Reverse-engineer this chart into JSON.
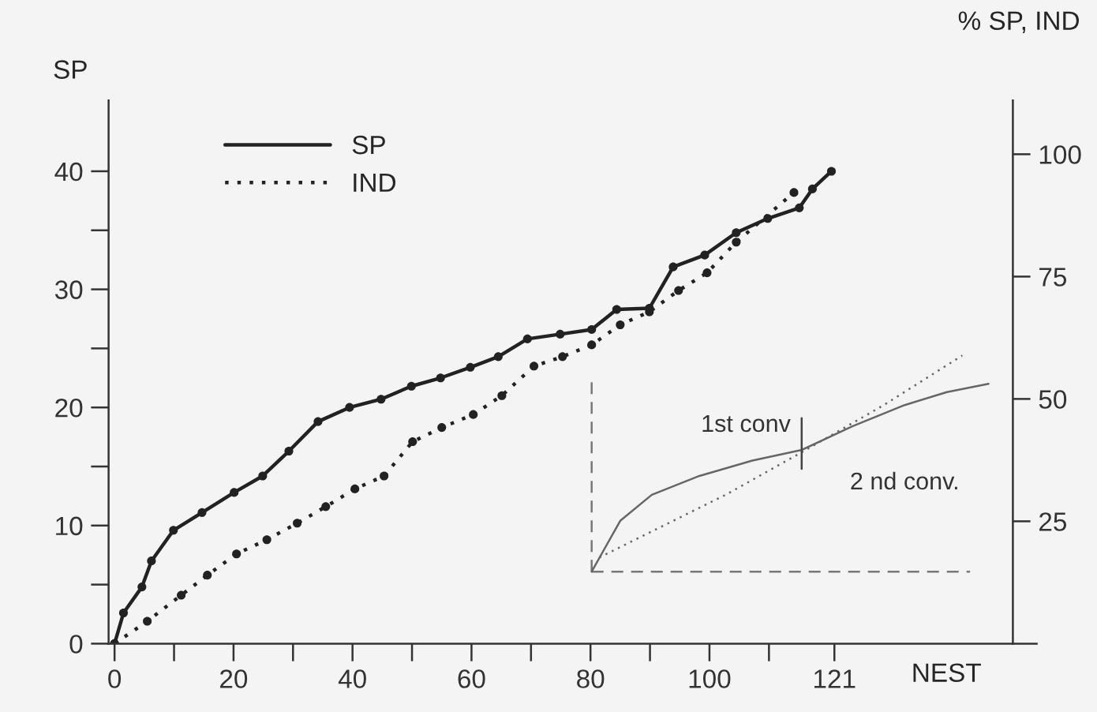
{
  "chart_data": {
    "type": "line",
    "ylabel": "SP",
    "y2label": "% SP, IND",
    "xlabel": "NEST",
    "xlim": [
      -1,
      155
    ],
    "ylim": [
      0,
      46
    ],
    "y2lim": [
      0,
      111
    ],
    "xticks": [
      0,
      {
        "value": 10,
        "label": null
      },
      20,
      {
        "value": 30,
        "label": null
      },
      40,
      {
        "value": 50,
        "label": null
      },
      60,
      {
        "value": 70,
        "label": null
      },
      80,
      {
        "value": 90,
        "label": null
      },
      100,
      {
        "value": 110,
        "label": null
      },
      121
    ],
    "yticks": [
      0,
      {
        "value": 5,
        "label": null
      },
      10,
      {
        "value": 15,
        "label": null
      },
      20,
      {
        "value": 25,
        "label": null
      },
      30,
      {
        "value": 35,
        "label": null
      },
      40
    ],
    "y2ticks": [
      25,
      50,
      75,
      100
    ],
    "grid": false,
    "legend": "top left",
    "marker": "circle",
    "series": [
      {
        "name": "SP",
        "color": "#222222",
        "line_style": "solid",
        "x": [
          0,
          1.5,
          4.6,
          6.2,
          9.9,
          14.7,
          20.1,
          24.9,
          29.3,
          34.2,
          39.5,
          44.8,
          49.9,
          54.8,
          59.8,
          64.5,
          69.4,
          74.9,
          80.2,
          84.4,
          89.9,
          93.9,
          99.2,
          104.5,
          109.8,
          115.1,
          117.3,
          120.5
        ],
        "values": [
          0,
          2.6,
          4.8,
          7.0,
          9.6,
          11.1,
          12.8,
          14.2,
          16.3,
          18.8,
          20.0,
          20.7,
          21.8,
          22.5,
          23.4,
          24.3,
          25.8,
          26.2,
          26.6,
          28.3,
          28.4,
          31.9,
          32.9,
          34.8,
          36.0,
          36.9,
          38.5,
          40.0
        ]
      },
      {
        "name": "IND",
        "color": "#222222",
        "line_style": "dotted",
        "x": [
          0,
          5.5,
          11.2,
          15.6,
          20.5,
          25.6,
          30.7,
          35.5,
          40.4,
          45.3,
          50.1,
          55.0,
          60.3,
          65.1,
          70.5,
          75.3,
          80.2,
          85.0,
          89.9,
          94.8,
          99.6,
          104.5,
          114.2
        ],
        "values": [
          0,
          1.9,
          4.1,
          5.8,
          7.6,
          8.8,
          10.2,
          11.6,
          13.1,
          14.2,
          17.1,
          18.3,
          19.4,
          21.0,
          23.5,
          24.3,
          25.3,
          27.0,
          28.1,
          29.9,
          31.4,
          34.0,
          38.2
        ]
      },
      {
        "color": "#777777",
        "line_style": "dashed",
        "marker": "none",
        "x": [
          80.2,
          80.2
        ],
        "values": [
          6.1,
          22.4
        ]
      },
      {
        "color": "#777777",
        "line_style": "dashed",
        "marker": "none",
        "x": [
          80.2,
          143.8
        ],
        "values": [
          6.1,
          6.1
        ]
      },
      {
        "color": "#666666",
        "line_style": "solid",
        "marker": "none",
        "x": [
          80.2,
          85.0,
          90.3,
          98.3,
          107.2,
          115.5,
          124.0,
          132.8,
          139.9,
          146.9
        ],
        "values": [
          6.1,
          10.4,
          12.6,
          14.2,
          15.5,
          16.4,
          18.4,
          20.2,
          21.3,
          22.0
        ]
      },
      {
        "color": "#666666",
        "line_style": "dotted",
        "marker": "none",
        "x": [
          81.5,
          102.7,
          115.5,
          129.3,
          142.5
        ],
        "values": [
          7.3,
          12.6,
          16.2,
          20.2,
          24.4
        ]
      },
      {
        "color": "#444444",
        "line_style": "solid",
        "marker": "none",
        "x": [
          115.5,
          115.5
        ],
        "values": [
          14.8,
          19.1
        ]
      }
    ],
    "annotations": [
      {
        "text": "1st conv",
        "x": 115.5,
        "y": 16.4
      },
      {
        "text": "2 nd conv.",
        "x": 115.5,
        "y": 16.4
      }
    ]
  }
}
